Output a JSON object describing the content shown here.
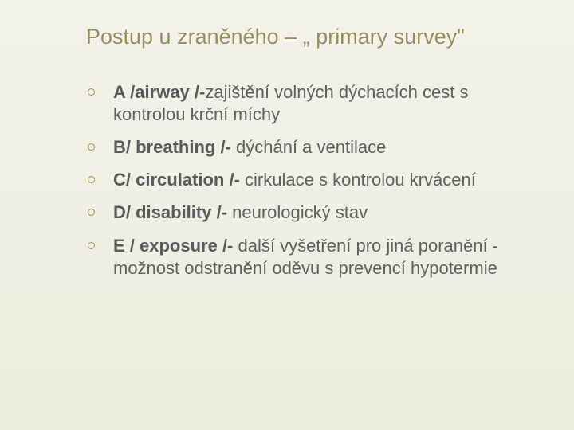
{
  "slide": {
    "title": "Postup u zraněného – „ primary survey\"",
    "title_color": "#9a8e58",
    "title_fontsize": 27,
    "body_fontsize": 22,
    "body_color": "#5f5f5f",
    "bullet_stroke": "#a09453",
    "background_gradient": [
      "#f2f2e9",
      "#ececde"
    ],
    "items": [
      {
        "bold": "A /airway /-",
        "rest": "zajištění volných dýchacích cest s kontrolou krční míchy"
      },
      {
        "bold": "B/ breathing /- ",
        "rest": "dýchání a ventilace"
      },
      {
        "bold": "C/ circulation /- ",
        "rest": "cirkulace s kontrolou krvácení"
      },
      {
        "bold": "D/ disability /- ",
        "rest": "neurologický stav"
      },
      {
        "bold": "E / exposure /- ",
        "rest": "další vyšetření pro jiná poranění -  možnost odstranění oděvu s prevencí hypotermie"
      }
    ]
  }
}
